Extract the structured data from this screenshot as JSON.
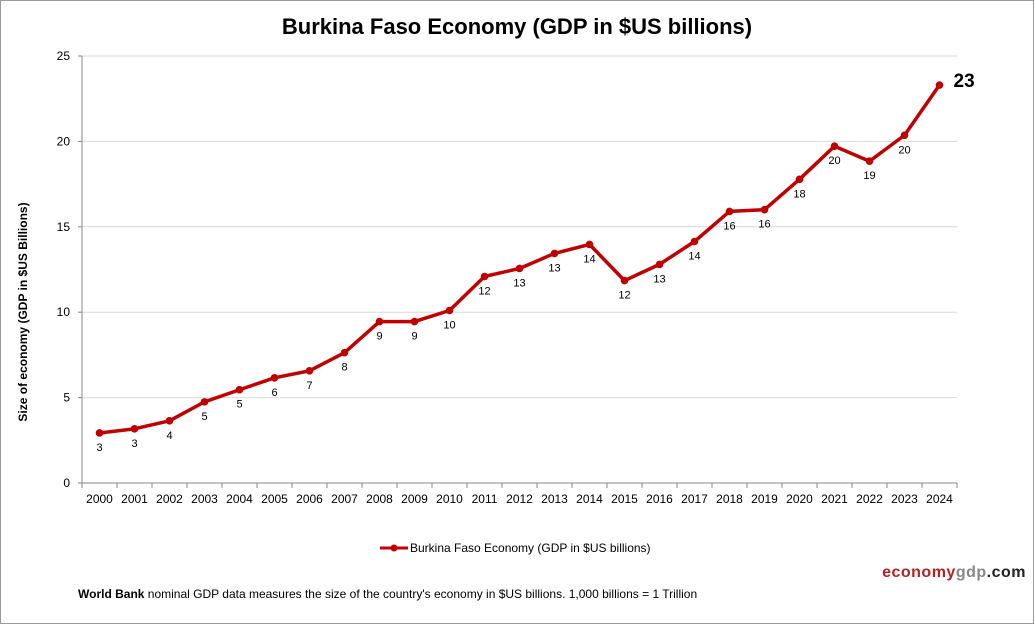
{
  "chart_data": {
    "type": "line",
    "title": "Burkina Faso Economy (GDP in $US billions)",
    "ylabel": "Size of economy (GDP in $US Billions)",
    "xlabel": "",
    "ylim": [
      0,
      25
    ],
    "yticks": [
      0,
      5,
      10,
      15,
      20,
      25
    ],
    "grid": true,
    "legend_position": "bottom",
    "line_color": "#c00000",
    "categories": [
      "2000",
      "2001",
      "2002",
      "2003",
      "2004",
      "2005",
      "2006",
      "2007",
      "2008",
      "2009",
      "2010",
      "2011",
      "2012",
      "2013",
      "2014",
      "2015",
      "2016",
      "2017",
      "2018",
      "2019",
      "2020",
      "2021",
      "2022",
      "2023",
      "2024"
    ],
    "series": [
      {
        "name": "Burkina Faso Economy (GDP in $US billions)",
        "values": [
          2.93,
          3.17,
          3.64,
          4.75,
          5.46,
          6.16,
          6.57,
          7.63,
          9.45,
          9.45,
          10.1,
          12.09,
          12.56,
          13.44,
          13.97,
          11.85,
          12.8,
          14.14,
          15.9,
          16.0,
          17.78,
          19.72,
          18.84,
          20.36,
          23.3
        ],
        "data_labels": [
          "3",
          "3",
          "4",
          "5",
          "5",
          "6",
          "7",
          "8",
          "9",
          "9",
          "10",
          "12",
          "13",
          "13",
          "14",
          "12",
          "13",
          "14",
          "16",
          "16",
          "18",
          "20",
          "19",
          "20",
          "23"
        ]
      }
    ]
  },
  "branding": {
    "part1": "economy",
    "part2": "gdp",
    "part3": ".com"
  },
  "footnote": {
    "bold": "World Bank",
    "text": " nominal GDP data  measures the size of the country's economy in $US billions. 1,000 billions = 1 Trillion"
  }
}
